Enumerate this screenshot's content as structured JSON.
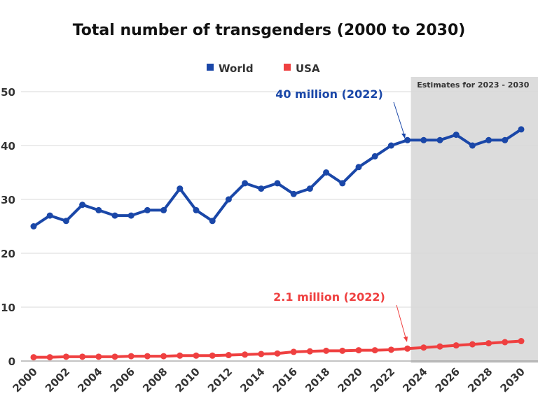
{
  "chart_data": {
    "type": "line",
    "title": "Total number of transgenders (2000 to 2030)",
    "xlabel": "",
    "ylabel": "",
    "xlim": [
      2000,
      2030
    ],
    "ylim": [
      0,
      50
    ],
    "yticks": [
      0,
      10,
      20,
      30,
      40,
      50
    ],
    "xticks": [
      2000,
      2002,
      2004,
      2006,
      2008,
      2010,
      2012,
      2014,
      2016,
      2018,
      2020,
      2022,
      2024,
      2026,
      2028,
      2030
    ],
    "grid": true,
    "legend_position": "top-center",
    "x": [
      2000,
      2001,
      2002,
      2003,
      2004,
      2005,
      2006,
      2007,
      2008,
      2009,
      2010,
      2011,
      2012,
      2013,
      2014,
      2015,
      2016,
      2017,
      2018,
      2019,
      2020,
      2021,
      2022,
      2023,
      2024,
      2025,
      2026,
      2027,
      2028,
      2029,
      2030
    ],
    "series": [
      {
        "name": "World",
        "color": "#1a47a8",
        "values": [
          25,
          27,
          26,
          29,
          28,
          27,
          27,
          28,
          28,
          32,
          28,
          26,
          30,
          33,
          32,
          33,
          31,
          32,
          35,
          33,
          36,
          38,
          40,
          41,
          41,
          41,
          42,
          40,
          41,
          41,
          43
        ]
      },
      {
        "name": "USA",
        "color": "#ef4040",
        "values": [
          0.7,
          0.7,
          0.8,
          0.8,
          0.8,
          0.8,
          0.9,
          0.9,
          0.9,
          1.0,
          1.0,
          1.0,
          1.1,
          1.2,
          1.3,
          1.4,
          1.7,
          1.8,
          1.9,
          1.9,
          2.0,
          2.0,
          2.1,
          2.3,
          2.5,
          2.7,
          2.9,
          3.1,
          3.3,
          3.5,
          3.7
        ]
      }
    ],
    "shaded_region": {
      "from": 2023,
      "to": 2030,
      "label": "Estimates for 2023 - 2030",
      "color": "#dcdcdc"
    },
    "annotations": [
      {
        "text": "40 million (2022)",
        "color": "#1a47a8",
        "series": "World"
      },
      {
        "text": "2.1 million (2022)",
        "color": "#ef4040",
        "series": "USA"
      }
    ]
  }
}
